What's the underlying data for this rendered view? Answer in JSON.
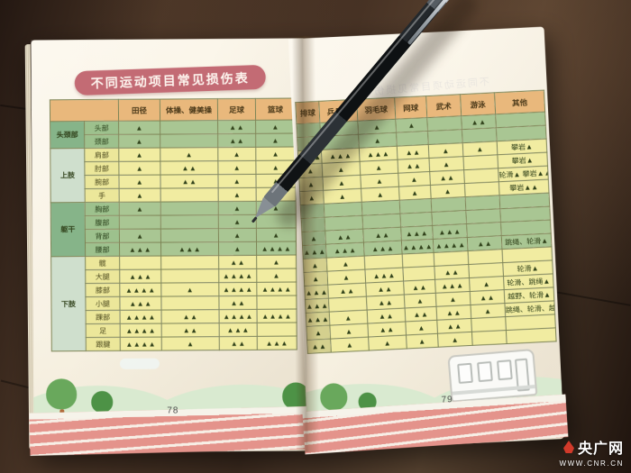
{
  "title": "不同运动项目常见损伤表",
  "mark_symbol": "▲",
  "pages": {
    "left": {
      "number": "78"
    },
    "right": {
      "number": "79"
    }
  },
  "watermark": {
    "name": "央广网",
    "url": "WWW.CNR.CN"
  },
  "table": {
    "sport_columns": [
      "田径",
      "体操、健美操",
      "足球",
      "篮球",
      "排球",
      "乒乓球",
      "羽毛球",
      "网球",
      "武术",
      "游泳"
    ],
    "other_column": "其他",
    "left_page_column_count": 4,
    "sections": [
      {
        "label": "头颈部",
        "rows": [
          {
            "label": "头部",
            "marks": [
              1,
              0,
              2,
              1,
              0,
              0,
              1,
              1,
              0,
              2
            ],
            "other": ""
          },
          {
            "label": "颈部",
            "marks": [
              1,
              0,
              2,
              1,
              1,
              0,
              1,
              0,
              0,
              0
            ],
            "other": ""
          }
        ]
      },
      {
        "label": "上肢",
        "rows": [
          {
            "label": "肩部",
            "marks": [
              1,
              1,
              1,
              1,
              3,
              3,
              3,
              2,
              1,
              1
            ],
            "other": "攀岩▲"
          },
          {
            "label": "肘部",
            "marks": [
              1,
              2,
              1,
              1,
              1,
              1,
              1,
              2,
              1,
              0
            ],
            "other": "攀岩▲"
          },
          {
            "label": "腕部",
            "marks": [
              1,
              2,
              1,
              1,
              1,
              1,
              1,
              1,
              2,
              0
            ],
            "other": "轮滑▲ 攀岩▲▲"
          },
          {
            "label": "手",
            "marks": [
              1,
              0,
              1,
              1,
              1,
              1,
              1,
              1,
              1,
              0
            ],
            "other": "攀岩▲▲"
          }
        ]
      },
      {
        "label": "躯干",
        "rows": [
          {
            "label": "胸部",
            "marks": [
              1,
              0,
              1,
              1,
              0,
              0,
              0,
              0,
              0,
              0
            ],
            "other": ""
          },
          {
            "label": "腹部",
            "marks": [
              0,
              0,
              1,
              0,
              0,
              0,
              0,
              0,
              0,
              0
            ],
            "other": ""
          },
          {
            "label": "背部",
            "marks": [
              1,
              0,
              1,
              1,
              1,
              2,
              2,
              3,
              3,
              0
            ],
            "other": ""
          },
          {
            "label": "腰部",
            "marks": [
              3,
              3,
              1,
              4,
              3,
              3,
              3,
              4,
              4,
              2
            ],
            "other": "跳绳、轮滑▲"
          }
        ]
      },
      {
        "label": "下肢",
        "rows": [
          {
            "label": "髋",
            "marks": [
              0,
              0,
              2,
              1,
              1,
              1,
              0,
              0,
              0,
              0
            ],
            "other": ""
          },
          {
            "label": "大腿",
            "marks": [
              3,
              0,
              4,
              1,
              1,
              1,
              3,
              0,
              2,
              0
            ],
            "other": "轮滑▲"
          },
          {
            "label": "膝部",
            "marks": [
              4,
              1,
              4,
              4,
              3,
              2,
              2,
              2,
              3,
              1
            ],
            "other": "轮滑、跳绳▲"
          },
          {
            "label": "小腿",
            "marks": [
              3,
              0,
              2,
              0,
              3,
              0,
              2,
              1,
              1,
              2
            ],
            "other": "越野、轮滑▲"
          },
          {
            "label": "踝部",
            "marks": [
              4,
              2,
              4,
              4,
              3,
              1,
              2,
              2,
              2,
              1
            ],
            "other": "跳绳、轮滑、越野▲"
          },
          {
            "label": "足",
            "marks": [
              4,
              2,
              3,
              0,
              1,
              1,
              2,
              1,
              2,
              0
            ],
            "other": ""
          },
          {
            "label": "跟腱",
            "marks": [
              4,
              1,
              2,
              3,
              2,
              1,
              1,
              1,
              1,
              0
            ],
            "other": ""
          }
        ]
      }
    ]
  }
}
